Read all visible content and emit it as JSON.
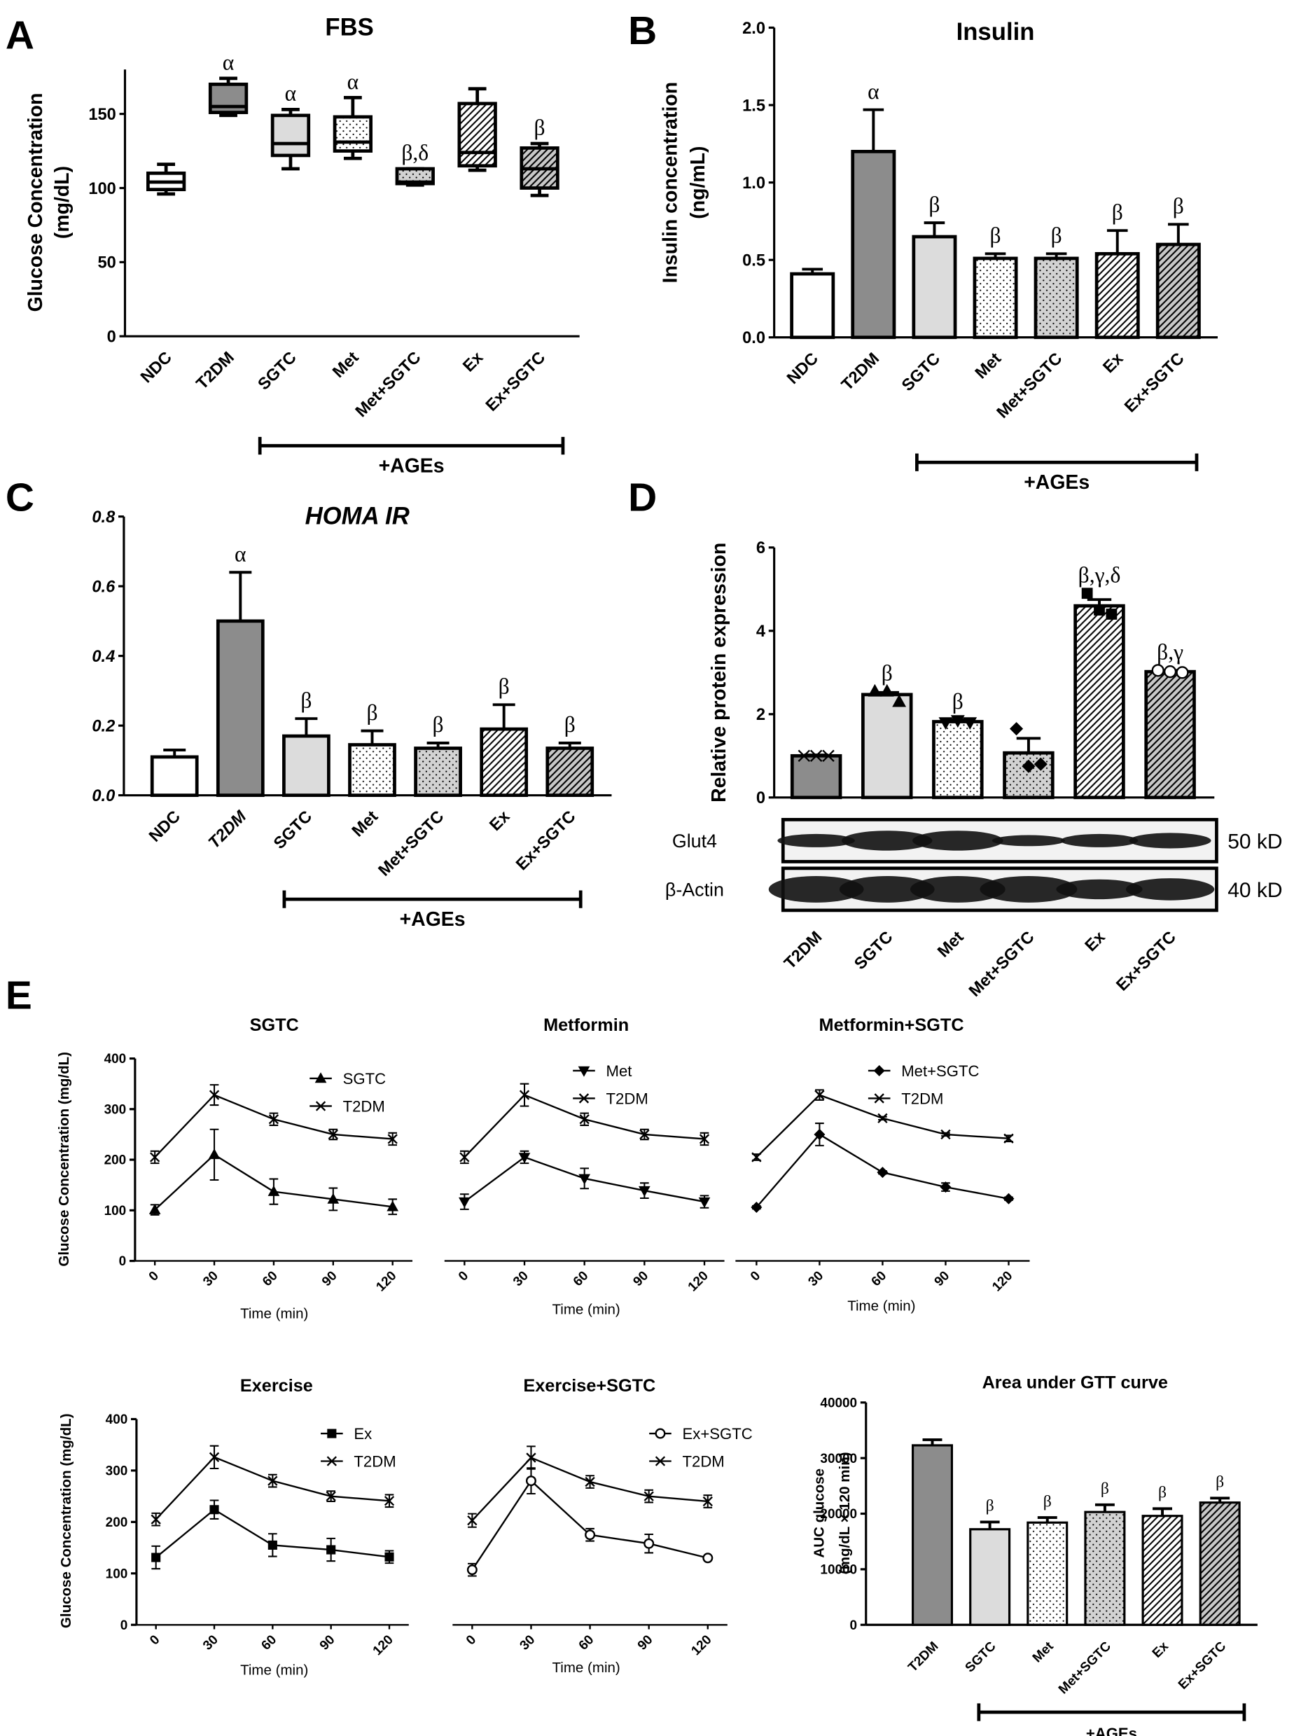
{
  "chart_data": [
    {
      "type": "box",
      "panel_label": "A",
      "title": "FBS",
      "ylabel": [
        "Glucose Concentration",
        "(mg/dL)"
      ],
      "categories": [
        "NDC",
        "T2DM",
        "SGTC",
        "Met",
        "Met+SGTC",
        "Ex",
        "Ex+SGTC"
      ],
      "min": [
        96,
        149,
        113,
        120,
        102,
        112,
        95
      ],
      "q1": [
        99,
        151,
        122,
        125,
        103,
        115,
        100
      ],
      "median": [
        104,
        155,
        130,
        131,
        104,
        124,
        113
      ],
      "q3": [
        110,
        170,
        149,
        148,
        113,
        157,
        127
      ],
      "max": [
        116,
        174,
        153,
        161,
        113,
        167,
        130
      ],
      "colors": [
        "#ffffff",
        "#8c8c8c",
        "#dcdcdc",
        "#ffffff",
        "#d2d2d2",
        "#ffffff",
        "#c8c8c8"
      ],
      "patterns": [
        null,
        null,
        null,
        "dots",
        "dots",
        "hatch",
        "hatch"
      ],
      "annotations": [
        null,
        "α",
        "α",
        "α",
        "β,δ",
        null,
        "β"
      ],
      "ylim": [
        0,
        180
      ],
      "yticks": [
        0,
        50,
        100,
        150
      ],
      "group_label": "+AGEs"
    },
    {
      "type": "bar",
      "panel_label": "B",
      "title": "Insulin",
      "ylabel": [
        "Insulin concentration",
        "(ng/mL)"
      ],
      "categories": [
        "NDC",
        "T2DM",
        "SGTC",
        "Met",
        "Met+SGTC",
        "Ex",
        "Ex+SGTC"
      ],
      "values": [
        0.41,
        1.2,
        0.65,
        0.51,
        0.51,
        0.54,
        0.6
      ],
      "errors": [
        0.03,
        0.27,
        0.09,
        0.03,
        0.03,
        0.15,
        0.13
      ],
      "colors": [
        "#ffffff",
        "#8c8c8c",
        "#dcdcdc",
        "#ffffff",
        "#d2d2d2",
        "#ffffff",
        "#c8c8c8"
      ],
      "patterns": [
        null,
        null,
        null,
        "dots",
        "dots",
        "hatch",
        "hatch"
      ],
      "annotations": [
        null,
        "α",
        "β",
        "β",
        "β",
        "β",
        "β"
      ],
      "ylim": [
        0,
        2
      ],
      "yticks": [
        {
          "value": 0,
          "label": "0.0"
        },
        0.5,
        {
          "value": 1,
          "label": "1.0"
        },
        1.5,
        {
          "value": 2,
          "label": "2.0"
        }
      ],
      "group_label": "+AGEs"
    },
    {
      "type": "bar",
      "panel_label": "C",
      "title": "HOMA IR",
      "categories": [
        "NDC",
        "T2DM",
        "SGTC",
        "Met",
        "Met+SGTC",
        "Ex",
        "Ex+SGTC"
      ],
      "values": [
        0.11,
        0.5,
        0.17,
        0.145,
        0.135,
        0.19,
        0.135
      ],
      "errors": [
        0.02,
        0.14,
        0.05,
        0.04,
        0.015,
        0.07,
        0.015
      ],
      "colors": [
        "#ffffff",
        "#8c8c8c",
        "#dcdcdc",
        "#ffffff",
        "#d2d2d2",
        "#ffffff",
        "#c8c8c8"
      ],
      "patterns": [
        null,
        null,
        null,
        "dots",
        "dots",
        "hatch",
        "hatch"
      ],
      "annotations": [
        null,
        "α",
        "β",
        "β",
        "β",
        "β",
        "β"
      ],
      "ylim": [
        0,
        0.8
      ],
      "yticks": [
        {
          "value": 0,
          "label": "0.0"
        },
        0.2,
        0.4,
        0.6,
        0.8
      ],
      "group_label": "+AGEs"
    },
    {
      "type": "bar",
      "panel_label": "D",
      "ylabel": [
        "Relative protein expression"
      ],
      "categories": [
        "T2DM",
        "SGTC",
        "Met",
        "Met+SGTC",
        "Ex",
        "Ex+SGTC"
      ],
      "values": [
        1.0,
        2.47,
        1.82,
        1.07,
        4.6,
        3.02
      ],
      "errors": [
        0.02,
        0.05,
        0.05,
        0.35,
        0.15,
        0.03
      ],
      "points": [
        [
          1.0,
          1.0,
          1.0
        ],
        [
          2.55,
          2.55,
          2.3
        ],
        [
          1.8,
          1.85,
          1.8
        ],
        [
          1.65,
          0.75,
          0.8
        ],
        [
          4.9,
          4.5,
          4.4
        ],
        [
          3.05,
          3.02,
          3.0
        ]
      ],
      "point_markers": [
        "x",
        "triangle",
        "triangle-down",
        "diamond",
        "square",
        "circle"
      ],
      "colors": [
        "#8c8c8c",
        "#dcdcdc",
        "#ffffff",
        "#d2d2d2",
        "#ffffff",
        "#c8c8c8"
      ],
      "patterns": [
        null,
        null,
        "dots",
        "dots",
        "hatch",
        "hatch"
      ],
      "annotations": [
        null,
        "β",
        "β",
        null,
        "β,γ,δ",
        "β,γ"
      ],
      "ylim": [
        0,
        6
      ],
      "yticks": [
        0,
        2,
        4,
        6
      ],
      "blot_labels": [
        "Glut4",
        "β-Actin"
      ],
      "band_sizes": [
        "50 kD",
        "40 kD"
      ]
    },
    {
      "type": "line",
      "panel_label": "E",
      "title": "SGTC",
      "ylabel": [
        "Glucose Concentration (mg/dL)"
      ],
      "xlabel": "Time (min)",
      "x": [
        0,
        30,
        60,
        90,
        120
      ],
      "xlim": [
        -10,
        130
      ],
      "xticks": [
        0,
        30,
        60,
        90,
        120
      ],
      "ylim": [
        0,
        400
      ],
      "yticks": [
        0,
        100,
        200,
        300,
        400
      ],
      "series": [
        {
          "name": "SGTC",
          "color": "#000000",
          "marker": "triangle",
          "values": [
            101,
            210,
            137,
            122,
            107
          ],
          "errors": [
            10,
            50,
            25,
            22,
            15
          ]
        },
        {
          "name": "T2DM",
          "color": "#000000",
          "marker": "x",
          "values": [
            205,
            328,
            280,
            250,
            241
          ],
          "errors": [
            12,
            20,
            12,
            10,
            12
          ]
        }
      ]
    },
    {
      "type": "line",
      "title": "Metformin",
      "xlabel": "Time (min)",
      "x": [
        0,
        30,
        60,
        90,
        120
      ],
      "xlim": [
        -10,
        130
      ],
      "xticks": [
        0,
        30,
        60,
        90,
        120
      ],
      "ylim": [
        0,
        400
      ],
      "series": [
        {
          "name": "Met",
          "color": "#000000",
          "marker": "triangle-down",
          "values": [
            117,
            205,
            163,
            139,
            117
          ],
          "errors": [
            15,
            12,
            20,
            15,
            12
          ]
        },
        {
          "name": "T2DM",
          "color": "#000000",
          "marker": "x",
          "values": [
            205,
            328,
            280,
            250,
            241
          ],
          "errors": [
            12,
            22,
            12,
            10,
            12
          ]
        }
      ]
    },
    {
      "type": "line",
      "title": "Metformin+SGTC",
      "xlabel": "Time (min)",
      "x": [
        0,
        30,
        60,
        90,
        120
      ],
      "xlim": [
        -10,
        130
      ],
      "xticks": [
        0,
        30,
        60,
        90,
        120
      ],
      "ylim": [
        0,
        400
      ],
      "series": [
        {
          "name": "Met+SGTC",
          "color": "#000000",
          "marker": "diamond",
          "values": [
            106,
            250,
            175,
            146,
            123
          ],
          "errors": [
            3,
            22,
            3,
            8,
            3
          ]
        },
        {
          "name": "T2DM",
          "color": "#000000",
          "marker": "x",
          "values": [
            205,
            328,
            282,
            250,
            242
          ],
          "errors": [
            6,
            10,
            3,
            3,
            6
          ]
        }
      ]
    },
    {
      "type": "line",
      "title": "Exercise",
      "ylabel": [
        "Glucose Concentration (mg/dL)"
      ],
      "xlabel": "Time (min)",
      "x": [
        0,
        30,
        60,
        90,
        120
      ],
      "xlim": [
        -10,
        130
      ],
      "xticks": [
        0,
        30,
        60,
        90,
        120
      ],
      "ylim": [
        0,
        400
      ],
      "yticks": [
        0,
        100,
        200,
        300,
        400
      ],
      "series": [
        {
          "name": "Ex",
          "color": "#000000",
          "marker": "square",
          "values": [
            131,
            224,
            155,
            146,
            132
          ],
          "errors": [
            22,
            18,
            22,
            22,
            12
          ]
        },
        {
          "name": "T2DM",
          "color": "#000000",
          "marker": "x",
          "values": [
            205,
            326,
            280,
            250,
            241
          ],
          "errors": [
            12,
            22,
            12,
            10,
            12
          ]
        }
      ]
    },
    {
      "type": "line",
      "title": "Exercise+SGTC",
      "xlabel": "Time (min)",
      "x": [
        0,
        30,
        60,
        90,
        120
      ],
      "xlim": [
        -10,
        130
      ],
      "xticks": [
        0,
        30,
        60,
        90,
        120
      ],
      "ylim": [
        0,
        400
      ],
      "series": [
        {
          "name": "Ex+SGTC",
          "color": "#000000",
          "marker": "circle",
          "values": [
            107,
            280,
            175,
            158,
            130
          ],
          "errors": [
            12,
            25,
            12,
            18,
            3
          ]
        },
        {
          "name": "T2DM",
          "color": "#000000",
          "marker": "x",
          "values": [
            203,
            325,
            278,
            250,
            240
          ],
          "errors": [
            13,
            22,
            12,
            12,
            12
          ]
        }
      ]
    },
    {
      "type": "bar",
      "title": "Area under GTT curve",
      "ylabel": [
        "AUC glucose",
        "(mg/dL × 120 min)"
      ],
      "categories": [
        "T2DM",
        "SGTC",
        "Met",
        "Met+SGTC",
        "Ex",
        "Ex+SGTC"
      ],
      "values": [
        32300,
        17200,
        18400,
        20300,
        19600,
        22000
      ],
      "errors": [
        1000,
        1300,
        900,
        1300,
        1300,
        800
      ],
      "colors": [
        "#8c8c8c",
        "#dcdcdc",
        "#ffffff",
        "#d2d2d2",
        "#ffffff",
        "#c8c8c8"
      ],
      "patterns": [
        null,
        null,
        "dots",
        "dots",
        "hatch",
        "hatch"
      ],
      "annotations": [
        null,
        "β",
        "β",
        "β",
        "β",
        "β"
      ],
      "ylim": [
        0,
        40000
      ],
      "yticks": [
        0,
        10000,
        20000,
        30000,
        40000
      ],
      "group_label": "+AGEs"
    }
  ]
}
